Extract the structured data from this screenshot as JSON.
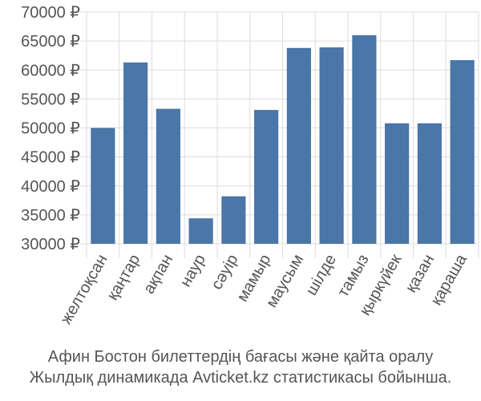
{
  "chart_data": {
    "type": "bar",
    "categories": [
      "желтоқсан",
      "қаңтар",
      "ақпан",
      "наур",
      "сәуір",
      "мамыр",
      "маусым",
      "шілде",
      "тамыз",
      "қыркүйек",
      "қазан",
      "қараша"
    ],
    "values": [
      50000,
      61300,
      53300,
      34400,
      38200,
      53100,
      63800,
      63900,
      66000,
      50800,
      50800,
      61700
    ],
    "yticks": [
      "30000 ₽",
      "35000 ₽",
      "40000 ₽",
      "45000 ₽",
      "50000 ₽",
      "55000 ₽",
      "60000 ₽",
      "65000 ₽",
      "70000 ₽"
    ],
    "ylim": [
      30000,
      70000
    ],
    "grid": true,
    "bar_color": "#4a76a8",
    "caption_line1": "Афин Бостон билеттердің бағасы және қайта оралу",
    "caption_line2": "Жылдық динамикада Avticket.kz статистикасы бойынша."
  }
}
